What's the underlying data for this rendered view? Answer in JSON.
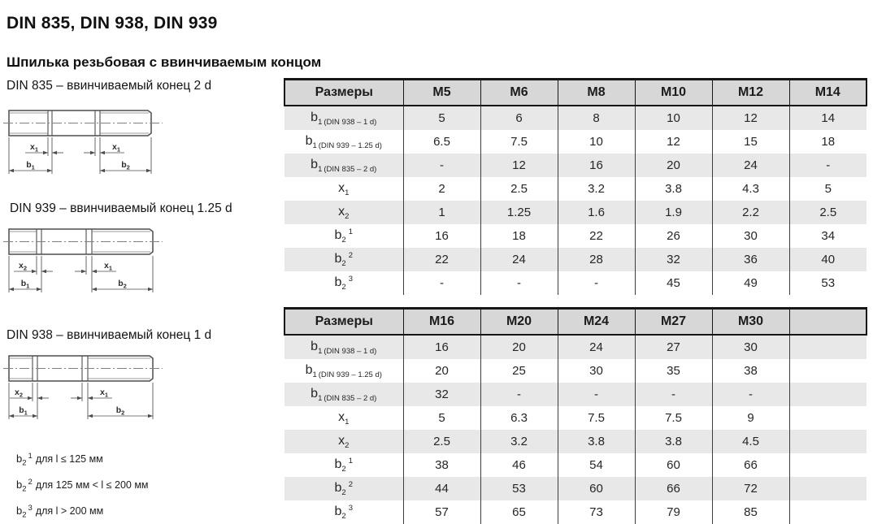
{
  "page": {
    "title": "DIN 835, DIN 938, DIN 939",
    "subtitle": "Шпилька резьбовая с ввинчиваемым концом"
  },
  "drawings": [
    {
      "id": "835",
      "label": "DIN 835 – ввинчиваемый конец 2 d",
      "dims": {
        "left_x": {
          "base": "x",
          "sub": "1"
        },
        "right_x": {
          "base": "x",
          "sub": "1"
        },
        "b_left": {
          "base": "b",
          "sub": "1"
        },
        "b_right": {
          "base": "b",
          "sub": "2"
        }
      }
    },
    {
      "id": "939",
      "label": "DIN 939 – ввинчиваемый конец 1.25 d",
      "dims": {
        "left_x": {
          "base": "x",
          "sub": "2"
        },
        "right_x": {
          "base": "x",
          "sub": "1"
        },
        "b_left": {
          "base": "b",
          "sub": "1"
        },
        "b_right": {
          "base": "b",
          "sub": "2"
        }
      }
    },
    {
      "id": "938",
      "label": "DIN 938 – ввинчиваемый конец 1 d",
      "dims": {
        "left_x": {
          "base": "x",
          "sub": "2"
        },
        "right_x": {
          "base": "x",
          "sub": "1"
        },
        "b_left": {
          "base": "b",
          "sub": "1"
        },
        "b_right": {
          "base": "b",
          "sub": "2"
        }
      }
    }
  ],
  "footnotes": [
    {
      "base": "b",
      "sub": "2",
      "sup": "1",
      "text": "для l ≤ 125 мм"
    },
    {
      "base": "b",
      "sub": "2",
      "sup": "2",
      "text": "для 125 мм < l ≤ 200 мм"
    },
    {
      "base": "b",
      "sub": "2",
      "sup": "3",
      "text": "для l > 200 мм"
    }
  ],
  "tables": [
    {
      "header": [
        "Размеры",
        "M5",
        "M6",
        "M8",
        "M10",
        "M12",
        "M14"
      ],
      "rows": [
        {
          "label": {
            "base": "b",
            "sub": "1",
            "note": "(DIN 938 – 1 d)"
          },
          "values": [
            "5",
            "6",
            "8",
            "10",
            "12",
            "14"
          ]
        },
        {
          "label": {
            "base": "b",
            "sub": "1",
            "note": "(DIN 939 – 1.25 d)"
          },
          "values": [
            "6.5",
            "7.5",
            "10",
            "12",
            "15",
            "18"
          ]
        },
        {
          "label": {
            "base": "b",
            "sub": "1",
            "note": "(DIN 835 – 2 d)"
          },
          "values": [
            "-",
            "12",
            "16",
            "20",
            "24",
            "-"
          ]
        },
        {
          "label": {
            "base": "x",
            "sub": "1"
          },
          "values": [
            "2",
            "2.5",
            "3.2",
            "3.8",
            "4.3",
            "5"
          ]
        },
        {
          "label": {
            "base": "x",
            "sub": "2"
          },
          "values": [
            "1",
            "1.25",
            "1.6",
            "1.9",
            "2.2",
            "2.5"
          ]
        },
        {
          "label": {
            "base": "b",
            "sub": "2",
            "sup": "1"
          },
          "values": [
            "16",
            "18",
            "22",
            "26",
            "30",
            "34"
          ]
        },
        {
          "label": {
            "base": "b",
            "sub": "2",
            "sup": "2"
          },
          "values": [
            "22",
            "24",
            "28",
            "32",
            "36",
            "40"
          ]
        },
        {
          "label": {
            "base": "b",
            "sub": "2",
            "sup": "3"
          },
          "values": [
            "-",
            "-",
            "-",
            "45",
            "49",
            "53"
          ]
        }
      ]
    },
    {
      "header": [
        "Размеры",
        "M16",
        "M20",
        "M24",
        "M27",
        "M30",
        ""
      ],
      "rows": [
        {
          "label": {
            "base": "b",
            "sub": "1",
            "note": "(DIN 938 – 1 d)"
          },
          "values": [
            "16",
            "20",
            "24",
            "27",
            "30",
            ""
          ]
        },
        {
          "label": {
            "base": "b",
            "sub": "1",
            "note": "(DIN 939 – 1.25 d)"
          },
          "values": [
            "20",
            "25",
            "30",
            "35",
            "38",
            ""
          ]
        },
        {
          "label": {
            "base": "b",
            "sub": "1",
            "note": "(DIN 835 – 2 d)"
          },
          "values": [
            "32",
            "-",
            "-",
            "-",
            "-",
            ""
          ]
        },
        {
          "label": {
            "base": "x",
            "sub": "1"
          },
          "values": [
            "5",
            "6.3",
            "7.5",
            "7.5",
            "9",
            ""
          ]
        },
        {
          "label": {
            "base": "x",
            "sub": "2"
          },
          "values": [
            "2.5",
            "3.2",
            "3.8",
            "3.8",
            "4.5",
            ""
          ]
        },
        {
          "label": {
            "base": "b",
            "sub": "2",
            "sup": "1"
          },
          "values": [
            "38",
            "46",
            "54",
            "60",
            "66",
            ""
          ]
        },
        {
          "label": {
            "base": "b",
            "sub": "2",
            "sup": "2"
          },
          "values": [
            "44",
            "53",
            "60",
            "66",
            "72",
            ""
          ]
        },
        {
          "label": {
            "base": "b",
            "sub": "2",
            "sup": "3"
          },
          "values": [
            "57",
            "65",
            "73",
            "79",
            "85",
            ""
          ]
        }
      ]
    }
  ],
  "colors": {
    "header_bg": "#d7d7d7",
    "row_alt_bg": "#e8e8e8",
    "border_dark": "#161616",
    "grid_line": "#3d3d3d",
    "drawing_line": "#4d4d4d"
  }
}
